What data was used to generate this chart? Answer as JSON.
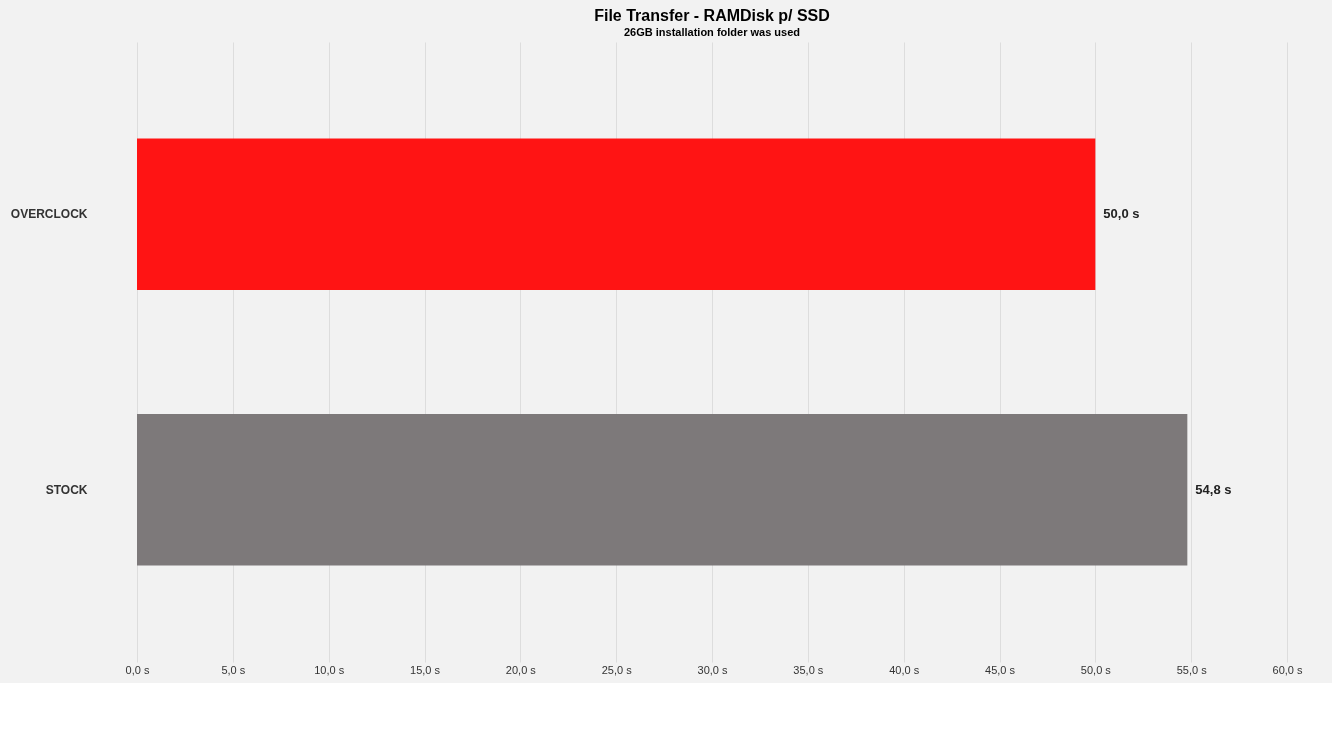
{
  "chart_data": {
    "type": "bar",
    "orientation": "horizontal",
    "title": "File Transfer - RAMDisk p/ SSD",
    "subtitle": "26GB installation folder was used",
    "categories": [
      "OVERCLOCK",
      "STOCK"
    ],
    "values": [
      50.0,
      54.8
    ],
    "colors": [
      "#ff1414",
      "#7d797a"
    ],
    "value_labels": [
      "50,0 s",
      "54,8 s"
    ],
    "xlim": [
      0,
      60
    ],
    "xticks": [
      {
        "value": 0,
        "label": "0,0 s"
      },
      {
        "value": 5,
        "label": "5,0 s"
      },
      {
        "value": 10,
        "label": "10,0 s"
      },
      {
        "value": 15,
        "label": "15,0 s"
      },
      {
        "value": 20,
        "label": "20,0 s"
      },
      {
        "value": 25,
        "label": "25,0 s"
      },
      {
        "value": 30,
        "label": "30,0 s"
      },
      {
        "value": 35,
        "label": "35,0 s"
      },
      {
        "value": 40,
        "label": "40,0 s"
      },
      {
        "value": 45,
        "label": "45,0 s"
      },
      {
        "value": 50,
        "label": "50,0 s"
      },
      {
        "value": 55,
        "label": "55,0 s"
      },
      {
        "value": 60,
        "label": "60,0 s"
      }
    ],
    "grid": "x"
  }
}
